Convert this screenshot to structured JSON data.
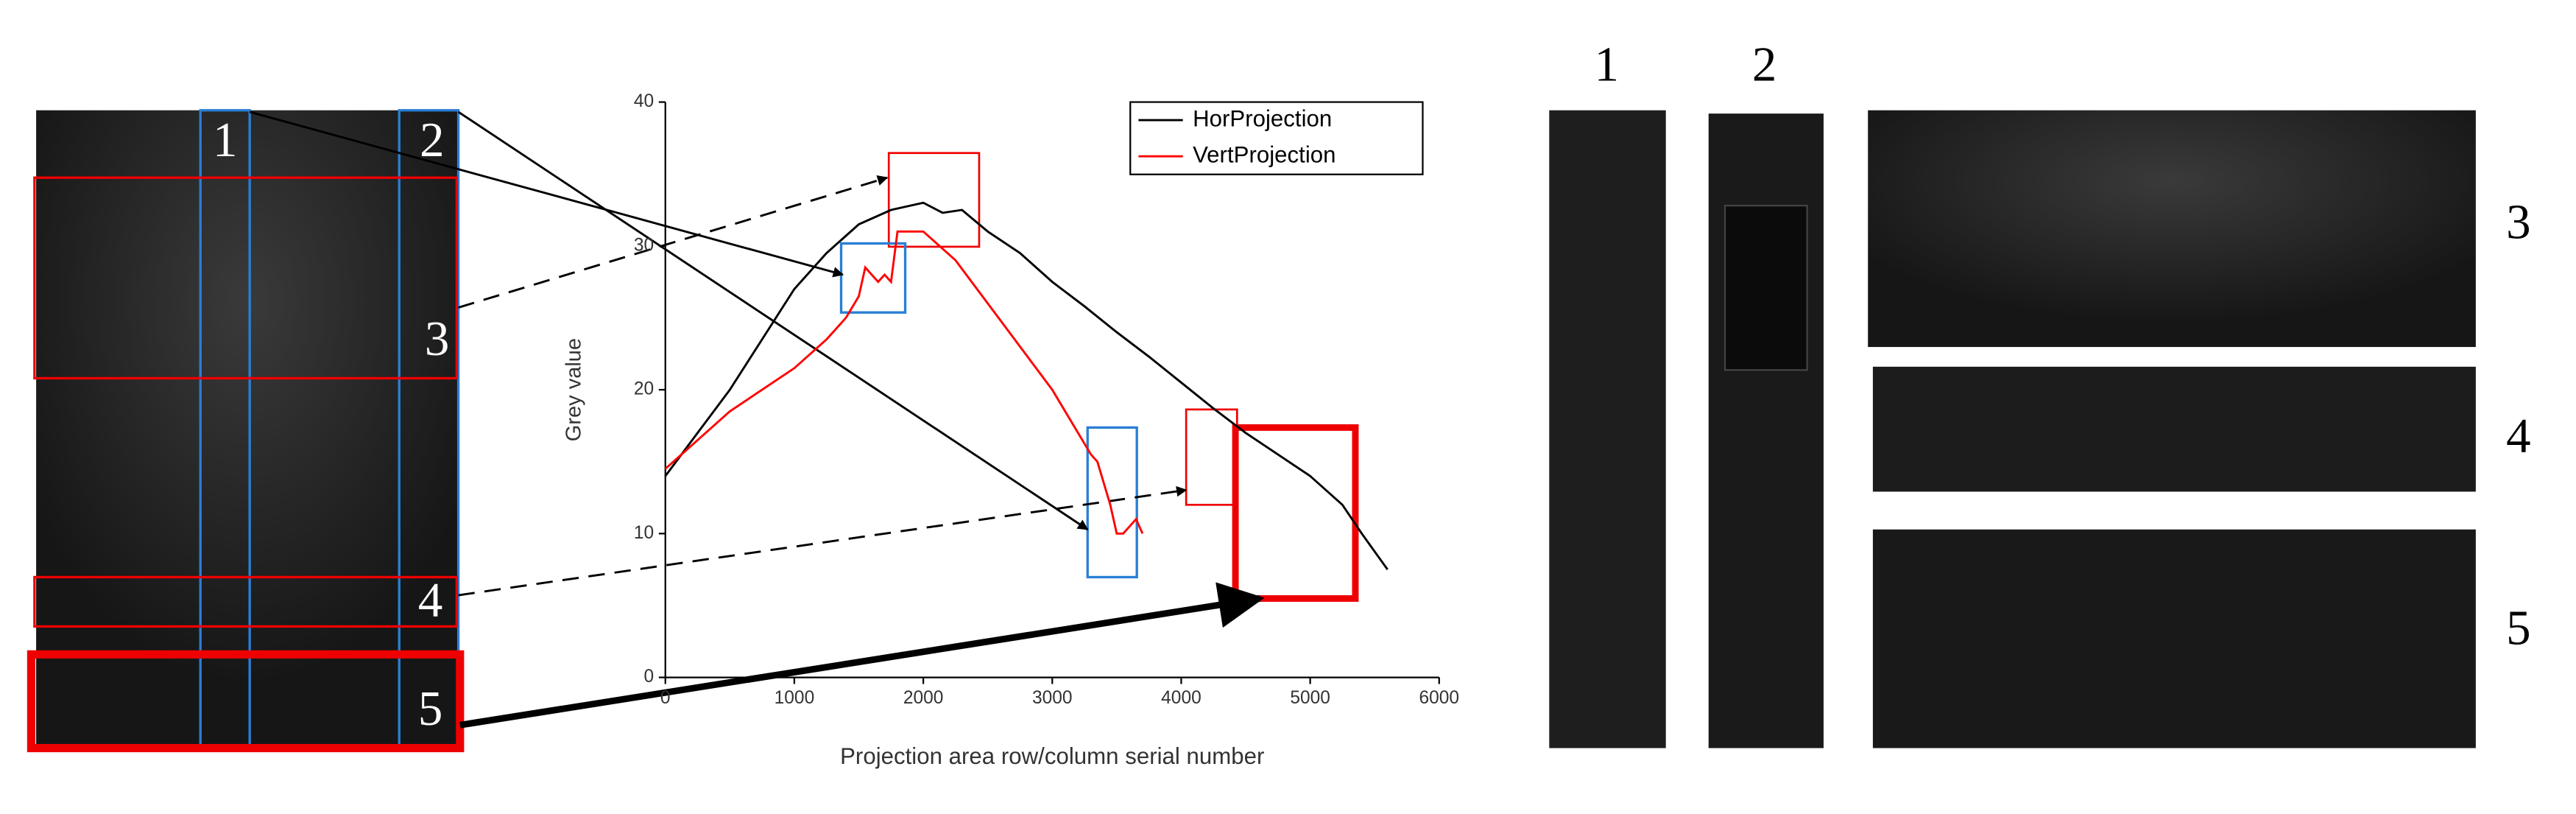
{
  "chart_data": {
    "type": "line",
    "xlabel": "Projection area row/column serial number",
    "ylabel": "Grey value",
    "xlim": [
      0,
      6000
    ],
    "xticks": [
      0,
      1000,
      2000,
      3000,
      4000,
      5000,
      6000
    ],
    "ylim": [
      0,
      40
    ],
    "yticks": [
      0,
      10,
      20,
      30,
      40
    ],
    "legend": "upper right",
    "series": [
      {
        "name": "HorProjection",
        "color": "#000000",
        "x": [
          0,
          250,
          500,
          750,
          1000,
          1250,
          1500,
          1750,
          2000,
          2150,
          2300,
          2500,
          2750,
          3000,
          3250,
          3500,
          3750,
          4000,
          4250,
          4500,
          4750,
          5000,
          5250,
          5400,
          5600
        ],
        "values": [
          14,
          17,
          20,
          23.5,
          27,
          29.5,
          31.5,
          32.5,
          33,
          32.3,
          32.5,
          31,
          29.5,
          27.5,
          25.8,
          24,
          22.3,
          20.5,
          18.7,
          17,
          15.5,
          14,
          12,
          10,
          7.5
        ]
      },
      {
        "name": "VertProjection",
        "color": "#ff0000",
        "x": [
          0,
          250,
          500,
          750,
          1000,
          1250,
          1400,
          1500,
          1550,
          1650,
          1700,
          1750,
          1800,
          1900,
          2000,
          2250,
          2500,
          2750,
          3000,
          3200,
          3300,
          3350,
          3400,
          3450,
          3500,
          3550,
          3600,
          3650,
          3700
        ],
        "values": [
          14.5,
          16.5,
          18.5,
          20,
          21.5,
          23.5,
          25,
          26.5,
          28.5,
          27.5,
          28,
          27.5,
          31,
          31,
          31,
          29,
          26,
          23,
          20,
          17,
          15.5,
          15,
          13.5,
          12,
          10,
          10,
          10.5,
          11,
          10
        ]
      }
    ]
  },
  "left_labels": [
    "1",
    "2",
    "3",
    "4",
    "5"
  ],
  "right_labels": [
    "1",
    "2",
    "3",
    "4",
    "5"
  ]
}
